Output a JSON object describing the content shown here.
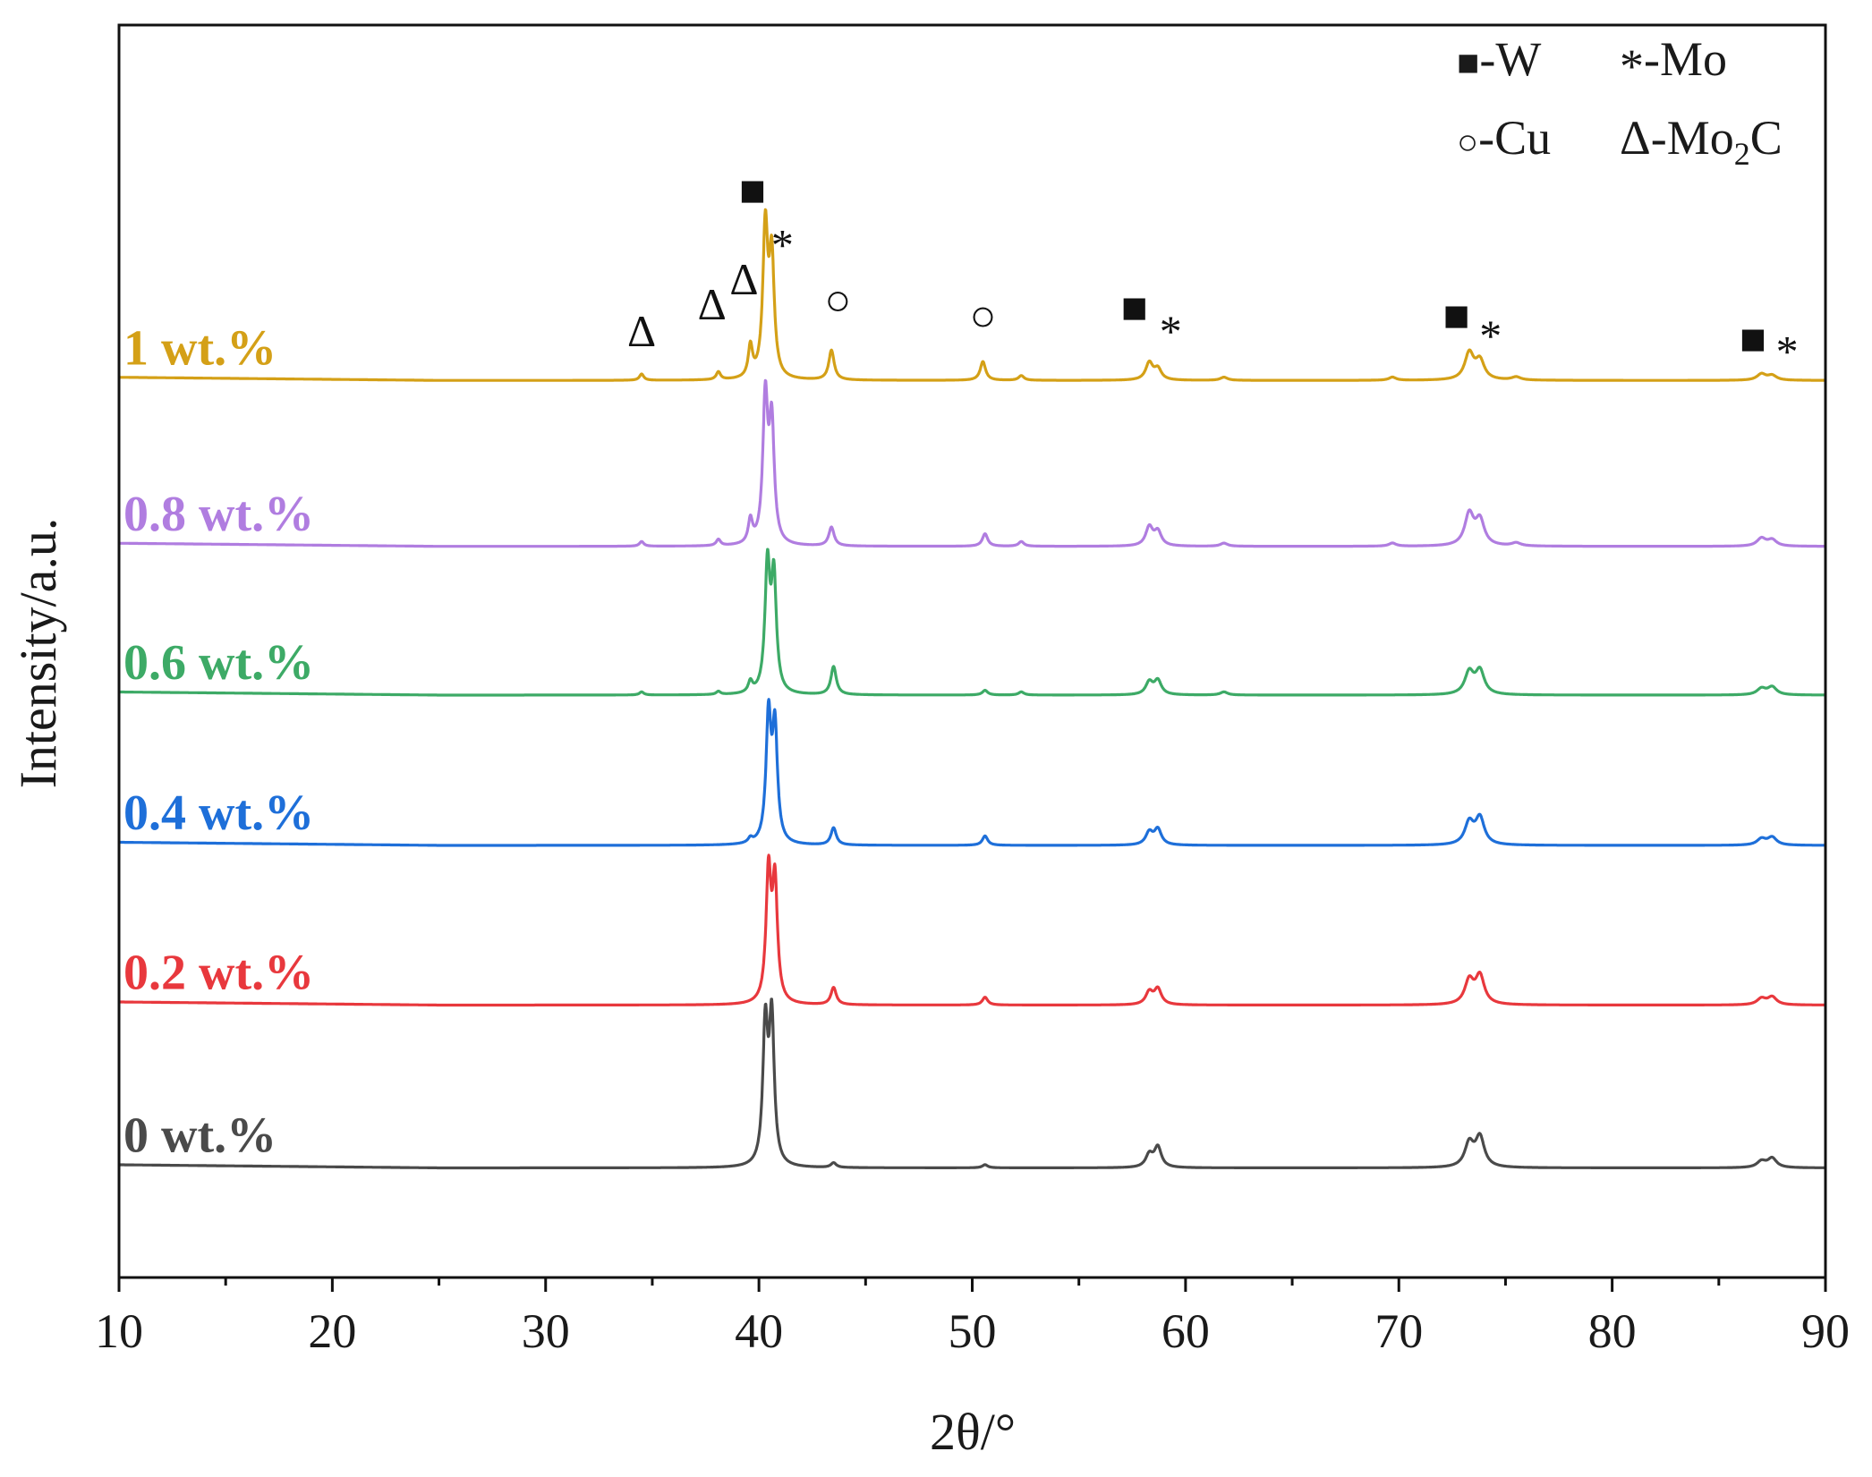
{
  "chart_data": {
    "type": "line",
    "title": "",
    "xlabel": "2θ/°",
    "ylabel": "Intensity/a.u.",
    "xlim": [
      10,
      90
    ],
    "ylim": [
      0,
      8
    ],
    "x_ticks": [
      10,
      20,
      30,
      40,
      50,
      60,
      70,
      80,
      90
    ],
    "x_tick_labels": [
      "10",
      "20",
      "30",
      "40",
      "50",
      "60",
      "70",
      "80",
      "90"
    ],
    "y_ticks_visible": false,
    "grid": false,
    "series": [
      {
        "name": "0 wt.%",
        "label": "0 wt.%",
        "color": "#4a4a4a",
        "baseline": 0.7,
        "peaks": [
          {
            "pos": 40.3,
            "h": 0.88,
            "w": 0.14
          },
          {
            "pos": 40.6,
            "h": 0.92,
            "w": 0.14
          },
          {
            "pos": 43.5,
            "h": 0.03,
            "w": 0.15
          },
          {
            "pos": 50.6,
            "h": 0.02,
            "w": 0.15
          },
          {
            "pos": 58.3,
            "h": 0.08,
            "w": 0.2
          },
          {
            "pos": 58.7,
            "h": 0.13,
            "w": 0.2
          },
          {
            "pos": 73.3,
            "h": 0.15,
            "w": 0.25
          },
          {
            "pos": 73.8,
            "h": 0.19,
            "w": 0.25
          },
          {
            "pos": 87.0,
            "h": 0.04,
            "w": 0.25
          },
          {
            "pos": 87.5,
            "h": 0.06,
            "w": 0.25
          }
        ]
      },
      {
        "name": "0.2 wt.%",
        "label": "0.2 wt.%",
        "color": "#e8383d",
        "baseline": 1.74,
        "peaks": [
          {
            "pos": 40.45,
            "h": 0.82,
            "w": 0.14
          },
          {
            "pos": 40.75,
            "h": 0.75,
            "w": 0.14
          },
          {
            "pos": 43.5,
            "h": 0.11,
            "w": 0.15
          },
          {
            "pos": 50.6,
            "h": 0.05,
            "w": 0.15
          },
          {
            "pos": 58.3,
            "h": 0.08,
            "w": 0.2
          },
          {
            "pos": 58.7,
            "h": 0.1,
            "w": 0.2
          },
          {
            "pos": 73.3,
            "h": 0.15,
            "w": 0.25
          },
          {
            "pos": 73.8,
            "h": 0.18,
            "w": 0.25
          },
          {
            "pos": 87.0,
            "h": 0.04,
            "w": 0.25
          },
          {
            "pos": 87.5,
            "h": 0.05,
            "w": 0.25
          }
        ]
      },
      {
        "name": "0.4 wt.%",
        "label": "0.4 wt.%",
        "color": "#1e6fd9",
        "baseline": 2.76,
        "peaks": [
          {
            "pos": 39.6,
            "h": 0.03,
            "w": 0.12
          },
          {
            "pos": 40.45,
            "h": 0.8,
            "w": 0.14
          },
          {
            "pos": 40.75,
            "h": 0.72,
            "w": 0.14
          },
          {
            "pos": 43.5,
            "h": 0.11,
            "w": 0.15
          },
          {
            "pos": 50.6,
            "h": 0.06,
            "w": 0.15
          },
          {
            "pos": 58.3,
            "h": 0.08,
            "w": 0.2
          },
          {
            "pos": 58.7,
            "h": 0.1,
            "w": 0.2
          },
          {
            "pos": 73.3,
            "h": 0.14,
            "w": 0.25
          },
          {
            "pos": 73.8,
            "h": 0.17,
            "w": 0.25
          },
          {
            "pos": 87.0,
            "h": 0.04,
            "w": 0.25
          },
          {
            "pos": 87.5,
            "h": 0.05,
            "w": 0.25
          }
        ]
      },
      {
        "name": "0.6 wt.%",
        "label": "0.6 wt.%",
        "color": "#3daa66",
        "baseline": 3.72,
        "peaks": [
          {
            "pos": 34.5,
            "h": 0.02,
            "w": 0.12
          },
          {
            "pos": 38.1,
            "h": 0.02,
            "w": 0.12
          },
          {
            "pos": 39.6,
            "h": 0.07,
            "w": 0.12
          },
          {
            "pos": 40.4,
            "h": 0.8,
            "w": 0.14
          },
          {
            "pos": 40.7,
            "h": 0.72,
            "w": 0.14
          },
          {
            "pos": 43.5,
            "h": 0.18,
            "w": 0.15
          },
          {
            "pos": 50.6,
            "h": 0.03,
            "w": 0.15
          },
          {
            "pos": 52.3,
            "h": 0.02,
            "w": 0.15
          },
          {
            "pos": 58.3,
            "h": 0.08,
            "w": 0.2
          },
          {
            "pos": 58.7,
            "h": 0.09,
            "w": 0.2
          },
          {
            "pos": 61.8,
            "h": 0.02,
            "w": 0.2
          },
          {
            "pos": 73.3,
            "h": 0.14,
            "w": 0.25
          },
          {
            "pos": 73.8,
            "h": 0.15,
            "w": 0.25
          },
          {
            "pos": 87.0,
            "h": 0.04,
            "w": 0.25
          },
          {
            "pos": 87.5,
            "h": 0.05,
            "w": 0.25
          }
        ]
      },
      {
        "name": "0.8 wt.%",
        "label": "0.8 wt.%",
        "color": "#b07de0",
        "baseline": 4.67,
        "peaks": [
          {
            "pos": 34.5,
            "h": 0.03,
            "w": 0.12
          },
          {
            "pos": 38.1,
            "h": 0.04,
            "w": 0.12
          },
          {
            "pos": 39.6,
            "h": 0.15,
            "w": 0.12
          },
          {
            "pos": 40.3,
            "h": 0.92,
            "w": 0.14
          },
          {
            "pos": 40.6,
            "h": 0.75,
            "w": 0.14
          },
          {
            "pos": 43.4,
            "h": 0.12,
            "w": 0.15
          },
          {
            "pos": 50.6,
            "h": 0.08,
            "w": 0.15
          },
          {
            "pos": 52.3,
            "h": 0.03,
            "w": 0.15
          },
          {
            "pos": 58.3,
            "h": 0.12,
            "w": 0.2
          },
          {
            "pos": 58.7,
            "h": 0.09,
            "w": 0.2
          },
          {
            "pos": 61.8,
            "h": 0.02,
            "w": 0.2
          },
          {
            "pos": 69.7,
            "h": 0.02,
            "w": 0.2
          },
          {
            "pos": 73.3,
            "h": 0.2,
            "w": 0.25
          },
          {
            "pos": 73.8,
            "h": 0.16,
            "w": 0.25
          },
          {
            "pos": 75.5,
            "h": 0.02,
            "w": 0.25
          },
          {
            "pos": 87.0,
            "h": 0.05,
            "w": 0.25
          },
          {
            "pos": 87.5,
            "h": 0.04,
            "w": 0.25
          }
        ]
      },
      {
        "name": "1 wt.%",
        "label": "1 wt.%",
        "color": "#d4a017",
        "baseline": 5.73,
        "peaks": [
          {
            "pos": 34.5,
            "h": 0.04,
            "w": 0.12
          },
          {
            "pos": 38.1,
            "h": 0.05,
            "w": 0.12
          },
          {
            "pos": 39.6,
            "h": 0.2,
            "w": 0.12
          },
          {
            "pos": 40.3,
            "h": 0.95,
            "w": 0.14
          },
          {
            "pos": 40.6,
            "h": 0.75,
            "w": 0.14
          },
          {
            "pos": 43.4,
            "h": 0.19,
            "w": 0.15
          },
          {
            "pos": 50.5,
            "h": 0.12,
            "w": 0.15
          },
          {
            "pos": 52.3,
            "h": 0.03,
            "w": 0.15
          },
          {
            "pos": 58.3,
            "h": 0.11,
            "w": 0.2
          },
          {
            "pos": 58.7,
            "h": 0.07,
            "w": 0.2
          },
          {
            "pos": 61.8,
            "h": 0.02,
            "w": 0.2
          },
          {
            "pos": 69.7,
            "h": 0.02,
            "w": 0.2
          },
          {
            "pos": 73.3,
            "h": 0.17,
            "w": 0.25
          },
          {
            "pos": 73.8,
            "h": 0.12,
            "w": 0.25
          },
          {
            "pos": 75.5,
            "h": 0.02,
            "w": 0.25
          },
          {
            "pos": 87.0,
            "h": 0.04,
            "w": 0.25
          },
          {
            "pos": 87.5,
            "h": 0.03,
            "w": 0.25
          }
        ]
      }
    ],
    "phase_markers": [
      {
        "symbol": "Δ",
        "x": 34.5,
        "y": 5.95,
        "phase": "Mo2C"
      },
      {
        "symbol": "Δ",
        "x": 37.8,
        "y": 6.12,
        "phase": "Mo2C"
      },
      {
        "symbol": "Δ",
        "x": 39.3,
        "y": 6.28,
        "phase": "Mo2C"
      },
      {
        "symbol": "■",
        "x": 39.7,
        "y": 6.85,
        "phase": "W"
      },
      {
        "symbol": "*",
        "x": 41.1,
        "y": 6.5,
        "phase": "Mo"
      },
      {
        "symbol": "○",
        "x": 43.7,
        "y": 6.15,
        "phase": "Cu"
      },
      {
        "symbol": "○",
        "x": 50.5,
        "y": 6.05,
        "phase": "Cu"
      },
      {
        "symbol": "■",
        "x": 57.6,
        "y": 6.1,
        "phase": "W"
      },
      {
        "symbol": "*",
        "x": 59.3,
        "y": 5.95,
        "phase": "Mo"
      },
      {
        "symbol": "■",
        "x": 72.7,
        "y": 6.05,
        "phase": "W"
      },
      {
        "symbol": "*",
        "x": 74.3,
        "y": 5.92,
        "phase": "Mo"
      },
      {
        "symbol": "■",
        "x": 86.6,
        "y": 5.9,
        "phase": "W"
      },
      {
        "symbol": "*",
        "x": 88.2,
        "y": 5.82,
        "phase": "Mo"
      }
    ],
    "legend": {
      "placement": "top-right",
      "entries": [
        {
          "symbol": "■",
          "text": "-W"
        },
        {
          "symbol": "*",
          "text": "-Mo"
        },
        {
          "symbol": "○",
          "text": "-Cu"
        },
        {
          "symbol": "Δ",
          "text": "-Mo",
          "subscript": "2",
          "suffix": "C"
        }
      ]
    }
  }
}
